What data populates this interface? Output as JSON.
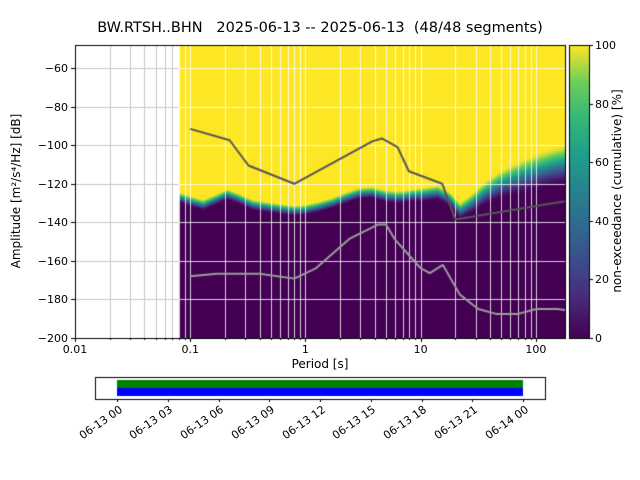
{
  "chart_data": {
    "type": "heatmap",
    "title": "BW.RTSH..BHN   2025-06-13 -- 2025-06-13  (48/48 segments)",
    "station": "BW.RTSH..BHN",
    "date_range": "2025-06-13 -- 2025-06-13",
    "segments": "48/48 segments",
    "xlabel": "Period [s]",
    "ylabel": "Amplitude [m²/s⁴/Hz] [dB]",
    "colorbar_label": "non-exceedance (cumulative) [%]",
    "x_scale": "log",
    "xlim": [
      0.01,
      179
    ],
    "ylim": [
      -200,
      -48
    ],
    "data_min_period": 0.08,
    "x_ticks": [
      {
        "label": "0.01",
        "value": 0.01
      },
      {
        "label": "0.1",
        "value": 0.1
      },
      {
        "label": "1",
        "value": 1
      },
      {
        "label": "10",
        "value": 10
      },
      {
        "label": "100",
        "value": 100
      }
    ],
    "y_ticks": [
      {
        "label": "−60",
        "value": -60
      },
      {
        "label": "−80",
        "value": -80
      },
      {
        "label": "−100",
        "value": -100
      },
      {
        "label": "−120",
        "value": -120
      },
      {
        "label": "−140",
        "value": -140
      },
      {
        "label": "−160",
        "value": -160
      },
      {
        "label": "−180",
        "value": -180
      },
      {
        "label": "−200",
        "value": -200
      }
    ],
    "colorbar_ticks": [
      {
        "label": "0",
        "value": 0
      },
      {
        "label": "20",
        "value": 20
      },
      {
        "label": "40",
        "value": 40
      },
      {
        "label": "60",
        "value": 60
      },
      {
        "label": "80",
        "value": 80
      },
      {
        "label": "100",
        "value": 100
      }
    ],
    "colormap": {
      "name": "viridis",
      "stops": [
        {
          "pos": 0,
          "color": "#440154"
        },
        {
          "pos": 0.125,
          "color": "#482878"
        },
        {
          "pos": 0.25,
          "color": "#3e4a89"
        },
        {
          "pos": 0.375,
          "color": "#31688e"
        },
        {
          "pos": 0.5,
          "color": "#26828e"
        },
        {
          "pos": 0.625,
          "color": "#1f9e89"
        },
        {
          "pos": 0.75,
          "color": "#35b779"
        },
        {
          "pos": 0.875,
          "color": "#6ece58"
        },
        {
          "pos": 1,
          "color": "#fde725"
        }
      ]
    },
    "grid": {
      "color_over_data": "#ffffff",
      "color_outside": "#c8c8c8"
    },
    "distribution": {
      "periods": [
        0.08,
        0.1,
        0.13,
        0.17,
        0.21,
        0.27,
        0.35,
        0.45,
        0.6,
        0.8,
        1.0,
        1.3,
        1.7,
        2.2,
        2.9,
        3.8,
        5.0,
        6.5,
        8.5,
        11,
        14,
        18,
        22,
        28,
        36,
        47,
        62,
        82,
        110,
        145,
        179
      ],
      "median_db": [
        -127,
        -129,
        -131,
        -128,
        -125.5,
        -128,
        -131,
        -132,
        -133,
        -134,
        -133.5,
        -132,
        -130,
        -127.5,
        -125,
        -124.5,
        -126.5,
        -127,
        -126,
        -125.5,
        -124.5,
        -128,
        -134,
        -130,
        -125,
        -121,
        -118,
        -115.5,
        -113,
        -111,
        -110
      ],
      "spread_db": [
        3,
        3,
        3,
        3,
        3,
        3,
        3,
        3,
        3,
        3,
        3,
        3,
        3,
        3.2,
        3.2,
        3.2,
        3.5,
        3.5,
        3.5,
        4,
        4,
        4,
        4.5,
        5.5,
        6.5,
        7.5,
        8.5,
        9.5,
        10,
        10.5,
        11
      ]
    },
    "noise_models": {
      "nhnm": {
        "color": "#565656",
        "periods": [
          0.1,
          0.22,
          0.32,
          0.8,
          3.8,
          4.6,
          6.3,
          7.9,
          15.4,
          20,
          179
        ],
        "db": [
          -91.5,
          -97.4,
          -110.5,
          -120,
          -98,
          -96.5,
          -101,
          -113.5,
          -120,
          -138.5,
          -129
        ]
      },
      "nlnm": {
        "color": "#9b9b9b",
        "periods": [
          0.1,
          0.17,
          0.4,
          0.8,
          1.24,
          2.4,
          4.3,
          5,
          6,
          10,
          12,
          15.6,
          21.9,
          31.6,
          45,
          70,
          101,
          154,
          179
        ],
        "db": [
          -168,
          -166.7,
          -166.7,
          -169.2,
          -163.7,
          -148.6,
          -141.1,
          -141.1,
          -149,
          -163.8,
          -166.3,
          -162.1,
          -177.5,
          -185,
          -187.5,
          -187.5,
          -185,
          -185,
          -185.5
        ]
      }
    },
    "timeline": {
      "tick_labels": [
        "06-13 00",
        "06-13 03",
        "06-13 06",
        "06-13 09",
        "06-13 12",
        "06-13 15",
        "06-13 18",
        "06-13 21",
        "06-14 00"
      ],
      "psd_coverage_color": "#008000",
      "data_coverage_color": "#0000ff",
      "coverage_start_label": "06-13 00",
      "coverage_end_label": "06-14 00"
    }
  }
}
